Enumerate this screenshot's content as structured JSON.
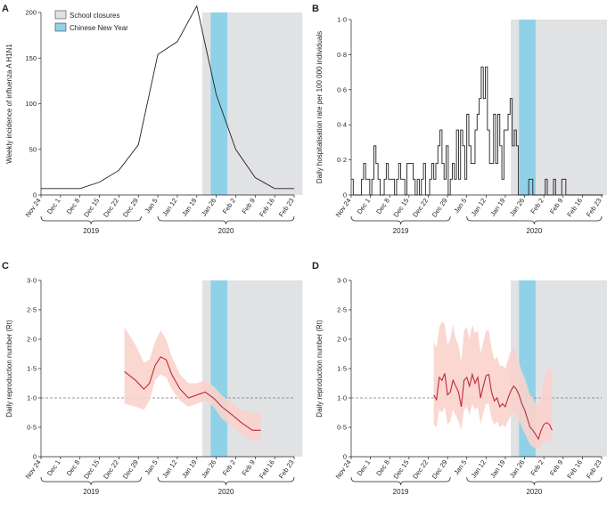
{
  "legend": {
    "school_closures_label": "School closures",
    "chinese_new_year_label": "Chinese New Year"
  },
  "colors": {
    "school_closure_fill": "#e1e2e4",
    "cny_fill": "#8fd1e6",
    "line_a": "#231f20",
    "line_b": "#231f20",
    "rt_line": "#c0283a",
    "rt_band": "#f9d3cc",
    "ref_line": "#7a7a7a"
  },
  "x_axis": {
    "tick_labels": [
      "Nov 24",
      "Dec 1",
      "Dec 8",
      "Dec 15",
      "Dec 22",
      "Dec 29",
      "Jan 5",
      "Jan 12",
      "Jan 19",
      "Jan 26",
      "Feb 2",
      "Feb 9",
      "Feb 16",
      "Feb 23"
    ],
    "year_labels": [
      "2019",
      "2020"
    ]
  },
  "chart_data": [
    {
      "panel": "A",
      "type": "line",
      "ylabel": "Weekly incidence of influenza A H1N1",
      "ylim": [
        0,
        200
      ],
      "yticks": [
        "0",
        "50",
        "100",
        "150",
        "200"
      ],
      "shaded": {
        "school_closures": [
          "2020-01-21",
          "2020-02-26"
        ],
        "chinese_new_year": [
          "2020-01-24",
          "2020-01-30"
        ]
      },
      "x": [
        "2019-11-24",
        "2019-12-01",
        "2019-12-08",
        "2019-12-15",
        "2019-12-22",
        "2019-12-29",
        "2020-01-05",
        "2020-01-12",
        "2020-01-19",
        "2020-01-26",
        "2020-02-02",
        "2020-02-09",
        "2020-02-16",
        "2020-02-23"
      ],
      "values": [
        7,
        7,
        7,
        14,
        27,
        55,
        154,
        168,
        207,
        110,
        50,
        19,
        7,
        7
      ]
    },
    {
      "panel": "B",
      "type": "line",
      "step": true,
      "ylabel": "Daily hospitalisation rate per 100 000 individuals",
      "ylim": [
        0,
        1.0
      ],
      "yticks": [
        "0",
        "0·2",
        "0·4",
        "0·6",
        "0·8",
        "1·0"
      ],
      "shaded": {
        "school_closures": [
          "2020-01-21",
          "2020-02-26"
        ],
        "chinese_new_year": [
          "2020-01-24",
          "2020-01-30"
        ]
      },
      "start_date": "2019-11-24",
      "values": [
        0.09,
        0,
        0,
        0,
        0,
        0.09,
        0.18,
        0.09,
        0.09,
        0,
        0.09,
        0.28,
        0.18,
        0.09,
        0,
        0,
        0.09,
        0.18,
        0.09,
        0.09,
        0.09,
        0,
        0.09,
        0.18,
        0.09,
        0.09,
        0,
        0.18,
        0.18,
        0.18,
        0.09,
        0,
        0.09,
        0,
        0.09,
        0.18,
        0,
        0,
        0.09,
        0.18,
        0.09,
        0.18,
        0.28,
        0.37,
        0.18,
        0.09,
        0.28,
        0,
        0.09,
        0.18,
        0.09,
        0.37,
        0.09,
        0.37,
        0.28,
        0.09,
        0.46,
        0.28,
        0.18,
        0.18,
        0.37,
        0.46,
        0.55,
        0.73,
        0.55,
        0.73,
        0.37,
        0.18,
        0.18,
        0.46,
        0.18,
        0.46,
        0.28,
        0.09,
        0.37,
        0.37,
        0.46,
        0.55,
        0.28,
        0.37,
        0.28,
        0,
        0,
        0,
        0,
        0,
        0.09,
        0.09,
        0,
        0,
        0,
        0,
        0,
        0,
        0.09,
        0,
        0,
        0,
        0.09,
        0,
        0,
        0,
        0.09,
        0.09,
        0,
        0,
        0,
        0,
        0,
        0,
        0,
        0,
        0,
        0,
        0,
        0,
        0,
        0,
        0,
        0,
        0,
        0
      ]
    },
    {
      "panel": "C",
      "type": "line",
      "ylabel": "Daily reproduction number (Rt)",
      "ylim": [
        0,
        3.0
      ],
      "yticks": [
        "0",
        "0·5",
        "1·0",
        "1·5",
        "2·0",
        "2·5",
        "3·0"
      ],
      "reference_line": 1.0,
      "shaded": {
        "school_closures": [
          "2020-01-21",
          "2020-02-26"
        ],
        "chinese_new_year": [
          "2020-01-24",
          "2020-01-30"
        ]
      },
      "x": [
        "2019-12-24",
        "2019-12-28",
        "2019-12-31",
        "2020-01-02",
        "2020-01-04",
        "2020-01-06",
        "2020-01-08",
        "2020-01-10",
        "2020-01-13",
        "2020-01-16",
        "2020-01-19",
        "2020-01-22",
        "2020-01-25",
        "2020-01-28",
        "2020-02-01",
        "2020-02-04",
        "2020-02-08",
        "2020-02-11"
      ],
      "values": [
        1.45,
        1.3,
        1.15,
        1.25,
        1.55,
        1.7,
        1.65,
        1.4,
        1.15,
        1.0,
        1.05,
        1.1,
        1.0,
        0.85,
        0.7,
        0.58,
        0.45,
        0.45
      ],
      "lower": [
        0.9,
        0.85,
        0.8,
        0.95,
        1.3,
        1.4,
        1.35,
        1.15,
        0.95,
        0.85,
        0.9,
        0.95,
        0.85,
        0.65,
        0.5,
        0.38,
        0.27,
        0.27
      ],
      "upper": [
        2.2,
        1.9,
        1.6,
        1.65,
        1.95,
        2.15,
        2.0,
        1.7,
        1.4,
        1.25,
        1.25,
        1.3,
        1.2,
        1.05,
        0.9,
        0.8,
        0.75,
        0.75
      ]
    },
    {
      "panel": "D",
      "type": "line",
      "ylabel": "Daily reproduction number (Rt)",
      "ylim": [
        0,
        3.0
      ],
      "yticks": [
        "0",
        "0·5",
        "1·0",
        "1·5",
        "2·0",
        "2·5",
        "3·0"
      ],
      "reference_line": 1.0,
      "shaded": {
        "school_closures": [
          "2020-01-21",
          "2020-02-26"
        ],
        "chinese_new_year": [
          "2020-01-24",
          "2020-01-30"
        ]
      },
      "x": [
        "2019-12-24",
        "2019-12-25",
        "2019-12-26",
        "2019-12-27",
        "2019-12-28",
        "2019-12-29",
        "2019-12-30",
        "2019-12-31",
        "2020-01-01",
        "2020-01-02",
        "2020-01-03",
        "2020-01-04",
        "2020-01-05",
        "2020-01-06",
        "2020-01-07",
        "2020-01-08",
        "2020-01-09",
        "2020-01-10",
        "2020-01-11",
        "2020-01-12",
        "2020-01-13",
        "2020-01-14",
        "2020-01-15",
        "2020-01-16",
        "2020-01-17",
        "2020-01-18",
        "2020-01-19",
        "2020-01-20",
        "2020-01-21",
        "2020-01-22",
        "2020-01-23",
        "2020-01-24",
        "2020-01-25",
        "2020-01-26",
        "2020-01-27",
        "2020-01-28",
        "2020-01-29",
        "2020-01-30",
        "2020-01-31",
        "2020-02-01",
        "2020-02-02",
        "2020-02-03",
        "2020-02-04",
        "2020-02-05"
      ],
      "values": [
        1.05,
        0.97,
        1.35,
        1.3,
        1.42,
        1.05,
        1.1,
        1.3,
        1.2,
        1.1,
        0.85,
        1.3,
        1.35,
        1.2,
        1.4,
        1.25,
        1.35,
        1.0,
        1.2,
        1.38,
        1.4,
        1.1,
        0.95,
        1.0,
        0.85,
        0.9,
        0.85,
        1.0,
        1.12,
        1.2,
        1.15,
        1.05,
        0.9,
        0.8,
        0.65,
        0.5,
        0.45,
        0.38,
        0.3,
        0.45,
        0.55,
        0.58,
        0.55,
        0.45
      ],
      "lower": [
        0.55,
        0.5,
        0.8,
        0.75,
        0.85,
        0.55,
        0.6,
        0.8,
        0.7,
        0.6,
        0.45,
        0.8,
        0.85,
        0.7,
        0.9,
        0.8,
        0.85,
        0.55,
        0.75,
        0.9,
        0.9,
        0.65,
        0.55,
        0.6,
        0.5,
        0.55,
        0.5,
        0.6,
        0.7,
        0.75,
        0.7,
        0.6,
        0.5,
        0.4,
        0.3,
        0.2,
        0.17,
        0.13,
        0.1,
        0.18,
        0.25,
        0.27,
        0.25,
        0.2
      ],
      "upper": [
        1.95,
        1.85,
        2.2,
        2.3,
        2.25,
        1.9,
        2.0,
        2.25,
        2.0,
        1.9,
        1.6,
        2.15,
        2.2,
        2.0,
        2.25,
        2.1,
        2.15,
        1.75,
        1.95,
        2.15,
        2.15,
        1.85,
        1.65,
        1.7,
        1.55,
        1.55,
        1.5,
        1.65,
        1.8,
        1.85,
        1.75,
        1.6,
        1.45,
        1.35,
        1.2,
        1.05,
        1.0,
        0.9,
        0.85,
        1.05,
        1.3,
        1.45,
        1.55,
        1.45
      ]
    }
  ]
}
